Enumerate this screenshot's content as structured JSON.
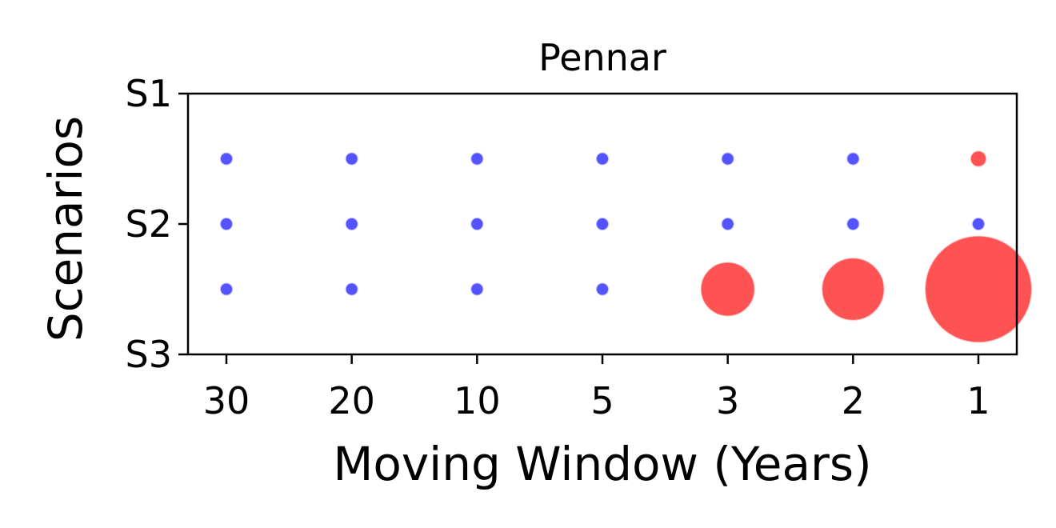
{
  "chart_data": {
    "type": "scatter",
    "title": "Pennar",
    "xlabel": "Moving Window (Years)",
    "ylabel": "Scenarios",
    "x_categories": [
      "30",
      "20",
      "10",
      "5",
      "3",
      "2",
      "1"
    ],
    "y_ticks": [
      "S1",
      "S2",
      "S3"
    ],
    "ylim": [
      0,
      1
    ],
    "grid": false,
    "legend": "none",
    "colors": {
      "low": "#4a4aff",
      "high": "#ff4a4a"
    },
    "series": [
      {
        "x": "30",
        "y": 0.25,
        "magnitude": 1,
        "color": "#4a4aff"
      },
      {
        "x": "20",
        "y": 0.25,
        "magnitude": 1,
        "color": "#4a4aff"
      },
      {
        "x": "10",
        "y": 0.25,
        "magnitude": 1,
        "color": "#4a4aff"
      },
      {
        "x": "5",
        "y": 0.25,
        "magnitude": 1,
        "color": "#4a4aff"
      },
      {
        "x": "3",
        "y": 0.25,
        "magnitude": 1,
        "color": "#4a4aff"
      },
      {
        "x": "2",
        "y": 0.25,
        "magnitude": 1,
        "color": "#4a4aff"
      },
      {
        "x": "1",
        "y": 0.25,
        "magnitude": 1.6,
        "color": "#ff4a4a"
      },
      {
        "x": "30",
        "y": 0.5,
        "magnitude": 1,
        "color": "#4a4aff"
      },
      {
        "x": "20",
        "y": 0.5,
        "magnitude": 1,
        "color": "#4a4aff"
      },
      {
        "x": "10",
        "y": 0.5,
        "magnitude": 1,
        "color": "#4a4aff"
      },
      {
        "x": "5",
        "y": 0.5,
        "magnitude": 1,
        "color": "#4a4aff"
      },
      {
        "x": "3",
        "y": 0.5,
        "magnitude": 1,
        "color": "#4a4aff"
      },
      {
        "x": "2",
        "y": 0.5,
        "magnitude": 1,
        "color": "#4a4aff"
      },
      {
        "x": "1",
        "y": 0.5,
        "magnitude": 1,
        "color": "#4a4aff"
      },
      {
        "x": "30",
        "y": 0.75,
        "magnitude": 1,
        "color": "#4a4aff"
      },
      {
        "x": "20",
        "y": 0.75,
        "magnitude": 1,
        "color": "#4a4aff"
      },
      {
        "x": "10",
        "y": 0.75,
        "magnitude": 1,
        "color": "#4a4aff"
      },
      {
        "x": "5",
        "y": 0.75,
        "magnitude": 1,
        "color": "#4a4aff"
      },
      {
        "x": "3",
        "y": 0.75,
        "magnitude": 18,
        "color": "#ff4a4a"
      },
      {
        "x": "2",
        "y": 0.75,
        "magnitude": 24,
        "color": "#ff4a4a"
      },
      {
        "x": "1",
        "y": 0.75,
        "magnitude": 70,
        "color": "#ff4a4a"
      }
    ]
  }
}
